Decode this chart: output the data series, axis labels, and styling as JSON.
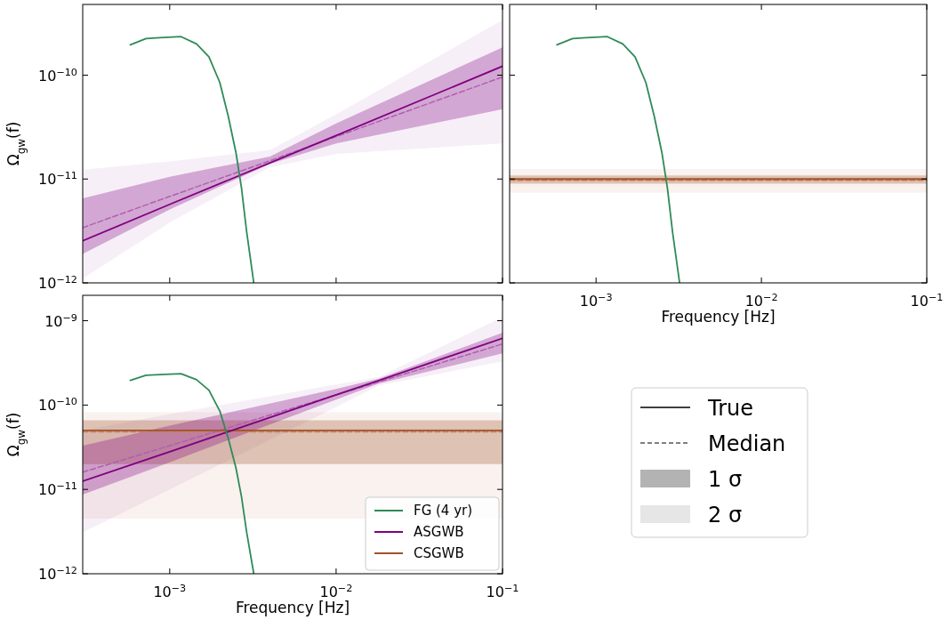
{
  "chart_data": [
    {
      "type": "line",
      "ylabel": "Ω$_{gw}$(f)",
      "log": "xy",
      "xlim": [
        0.0003,
        0.1
      ],
      "ylim": [
        1e-12,
        4.8e-10
      ],
      "xticks": [
        {
          "value": 0.001,
          "label": null
        },
        {
          "value": 0.01,
          "label": null
        },
        {
          "value": 0.1,
          "label": null
        }
      ],
      "yticks": [
        {
          "value": 1e-12,
          "label": "10$^{−12}$"
        },
        {
          "value": 1e-11,
          "label": "10$^{−11}$"
        },
        {
          "value": 1e-10,
          "label": "10$^{−10}$"
        }
      ],
      "tick_labels": "y",
      "grid": false,
      "legend": false,
      "series": [
        {
          "color": "#2e8b57",
          "x": [
            0.00058,
            0.00072,
            0.00087,
            0.00117,
            0.00145,
            0.00172,
            0.002,
            0.00225,
            0.0025,
            0.0027,
            0.0029,
            0.0032
          ],
          "values": [
            1.96e-10,
            2.25e-10,
            2.3e-10,
            2.35e-10,
            2e-10,
            1.5e-10,
            8.5e-11,
            4e-11,
            1.8e-11,
            8.2e-12,
            3.1e-12,
            1e-12
          ],
          "line_style": "solid"
        },
        {
          "color": "#800080",
          "x": [
            0.0003,
            0.001,
            0.004,
            0.01,
            0.1
          ],
          "values": [
            2.54e-12,
            5.7e-12,
            1.43e-11,
            2.62e-11,
            1.22e-10
          ],
          "lower": [
            1.9e-12,
            5.1e-12,
            1.4e-11,
            2.2e-11,
            4.7e-11
          ],
          "upper": [
            6.5e-12,
            1.05e-11,
            1.65e-11,
            3.44e-11,
            1.85e-10
          ],
          "line_style": "solid"
        },
        {
          "color": "#b060b0",
          "x": [
            0.0003,
            0.001,
            0.004,
            0.01,
            0.1
          ],
          "values": [
            3.4e-12,
            6.8e-12,
            1.5e-11,
            2.56e-11,
            9.6e-11
          ],
          "lower": [
            1.1e-12,
            3.8e-12,
            1.3e-11,
            1.75e-11,
            2.2e-11
          ],
          "upper": [
            1.23e-11,
            1.48e-11,
            1.9e-11,
            4.2e-11,
            3.4e-10
          ],
          "line_style": "dashed"
        }
      ]
    },
    {
      "type": "line",
      "xlabel": "Frequency [Hz]",
      "log": "xy",
      "xlim": [
        0.0003,
        0.1
      ],
      "ylim": [
        1e-12,
        4.8e-10
      ],
      "xticks": [
        {
          "value": 0.001,
          "label": "10$^{−3}$"
        },
        {
          "value": 0.01,
          "label": "10$^{−2}$"
        },
        {
          "value": 0.1,
          "label": "10$^{−1}$"
        }
      ],
      "yticks": [
        {
          "value": 1e-12,
          "label": null
        },
        {
          "value": 1e-11,
          "label": null
        },
        {
          "value": 1e-10,
          "label": null
        }
      ],
      "tick_labels": "x",
      "grid": false,
      "legend": false,
      "series": [
        {
          "color": "#2e8b57",
          "x": [
            0.00058,
            0.00072,
            0.00087,
            0.00117,
            0.00145,
            0.00172,
            0.002,
            0.00225,
            0.0025,
            0.0027,
            0.0029,
            0.0032
          ],
          "values": [
            1.96e-10,
            2.25e-10,
            2.3e-10,
            2.35e-10,
            2e-10,
            1.5e-10,
            8.5e-11,
            4e-11,
            1.8e-11,
            8.2e-12,
            3.1e-12,
            1e-12
          ],
          "line_style": "solid"
        },
        {
          "color": "#a0522d",
          "x": [
            0.0003,
            0.1
          ],
          "values": [
            1e-11,
            1e-11
          ],
          "lower": [
            9e-12,
            9e-12
          ],
          "upper": [
            1.08e-11,
            1.08e-11
          ],
          "line_style": "solid"
        },
        {
          "color": "#c8825a",
          "x": [
            0.0003,
            0.1
          ],
          "values": [
            9.7e-12,
            9.7e-12
          ],
          "lower": [
            7.4e-12,
            7.4e-12
          ],
          "upper": [
            1.25e-11,
            1.25e-11
          ],
          "line_style": "dashed"
        }
      ]
    },
    {
      "type": "line",
      "xlabel": "Frequency [Hz]",
      "ylabel": "Ω$_{gw}$(f)",
      "log": "xy",
      "xlim": [
        0.0003,
        0.1
      ],
      "ylim": [
        1e-12,
        2e-09
      ],
      "xticks": [
        {
          "value": 0.001,
          "label": "10$^{−3}$"
        },
        {
          "value": 0.01,
          "label": "10$^{−2}$"
        },
        {
          "value": 0.1,
          "label": "10$^{−1}$"
        }
      ],
      "yticks": [
        {
          "value": 1e-12,
          "label": "10$^{−12}$"
        },
        {
          "value": 1e-11,
          "label": "10$^{−11}$"
        },
        {
          "value": 1e-10,
          "label": "10$^{−10}$"
        },
        {
          "value": 1e-09,
          "label": "10$^{−9}$"
        }
      ],
      "grid": false,
      "legend": "bottom right",
      "series": [
        {
          "name": "FG (4 yr)",
          "color": "#2e8b57",
          "x": [
            0.00058,
            0.00072,
            0.00087,
            0.00117,
            0.00145,
            0.00172,
            0.002,
            0.00225,
            0.0025,
            0.0027,
            0.0029,
            0.0032
          ],
          "values": [
            1.96e-10,
            2.25e-10,
            2.3e-10,
            2.35e-10,
            2e-10,
            1.5e-10,
            8.5e-11,
            4e-11,
            1.8e-11,
            8.2e-12,
            3.1e-12,
            1e-12
          ],
          "line_style": "solid"
        },
        {
          "name": "ASGWB",
          "color": "#800080",
          "x": [
            0.0003,
            0.001,
            0.01,
            0.018,
            0.1
          ],
          "values": [
            1.25e-11,
            2.8e-11,
            1.32e-10,
            1.95e-10,
            6.2e-10
          ],
          "lower": [
            8.7e-12,
            2.1e-11,
            1.16e-10,
            1.8e-10,
            4.1e-10
          ],
          "upper": [
            3.3e-11,
            5.7e-11,
            1.55e-10,
            2.05e-10,
            7.2e-10
          ],
          "line_style": "solid"
        },
        {
          "name": "CSGWB",
          "color": "#a0522d",
          "x": [
            0.0003,
            0.1
          ],
          "values": [
            5e-11,
            5e-11
          ],
          "lower": [
            2e-11,
            2e-11
          ],
          "upper": [
            6.6e-11,
            6.6e-11
          ],
          "line_style": "solid"
        },
        {
          "color": "#b060b0",
          "x": [
            0.0003,
            0.001,
            0.01,
            0.018,
            0.1
          ],
          "values": [
            1.6e-11,
            3.3e-11,
            1.32e-10,
            1.88e-10,
            5.3e-10
          ],
          "lower": [
            3.1e-12,
            1e-11,
            9.5e-11,
            1.7e-10,
            3.3e-10
          ],
          "upper": [
            5e-11,
            7.8e-11,
            1.75e-10,
            2.15e-10,
            1.1e-09
          ],
          "line_style": "dashed"
        },
        {
          "color": "#c8825a",
          "x": [
            0.0003,
            0.1
          ],
          "values": [
            4.8e-11,
            4.8e-11
          ],
          "lower": [
            4.5e-12,
            4.5e-12
          ],
          "upper": [
            8.2e-11,
            8.2e-11
          ],
          "line_style": "dashed"
        }
      ]
    },
    {
      "type": "other",
      "annotations": [
        "True",
        "Median",
        "1 σ",
        "2 σ"
      ]
    }
  ]
}
